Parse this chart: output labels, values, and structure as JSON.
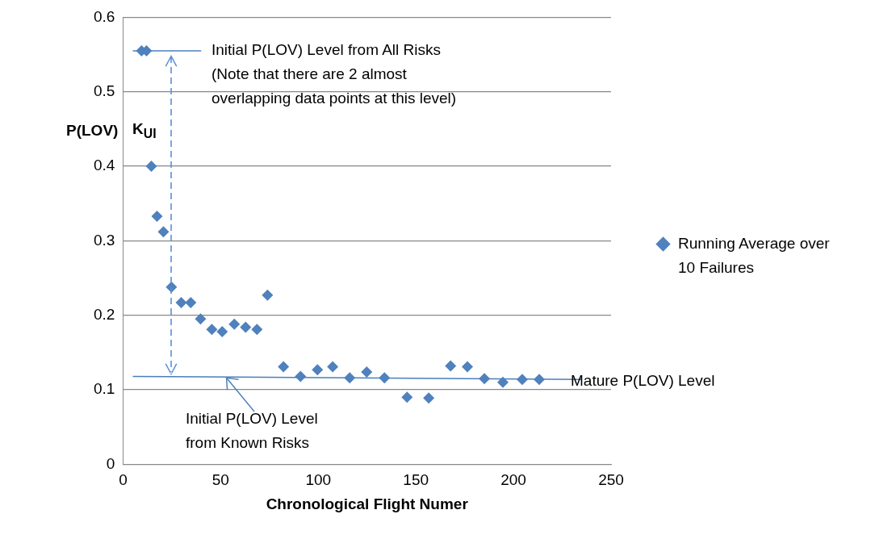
{
  "chart_data": {
    "type": "scatter",
    "xlabel": "Chronological Flight Numer",
    "ylabel": "P(LOV)",
    "xlim": [
      0,
      250
    ],
    "xticks": [
      0,
      50,
      100,
      150,
      200,
      250
    ],
    "ylim": [
      0,
      0.6
    ],
    "yticks": [
      0,
      0.1,
      0.2,
      0.3,
      0.4,
      0.5,
      0.6
    ],
    "grid": "y",
    "legend": "right",
    "marker": "diamond",
    "series": [
      {
        "name": "Running Average over 10 Failures",
        "color": "#4f81bd",
        "x": [
          9.5,
          12,
          14.5,
          17.4,
          20.7,
          24.8,
          29.8,
          34.7,
          39.7,
          45.5,
          50.8,
          57,
          62.8,
          68.6,
          74,
          82.2,
          90.9,
          99.6,
          107.4,
          116.1,
          124.8,
          133.9,
          145.5,
          156.6,
          167.8,
          176.4,
          185.1,
          194.6,
          204.5,
          213.2
        ],
        "values": [
          0.555,
          0.555,
          0.4,
          0.333,
          0.312,
          0.238,
          0.217,
          0.217,
          0.195,
          0.181,
          0.178,
          0.188,
          0.184,
          0.181,
          0.227,
          0.131,
          0.118,
          0.127,
          0.131,
          0.116,
          0.124,
          0.116,
          0.09,
          0.089,
          0.132,
          0.131,
          0.115,
          0.11,
          0.114,
          0.114
        ]
      },
      {
        "type": "line",
        "color": "#4a7ebb",
        "marker": "none",
        "line_style": "solid",
        "x": [
          5,
          40
        ],
        "values": [
          0.555,
          0.555
        ]
      },
      {
        "type": "line",
        "color": "#4a7ebb",
        "marker": "none",
        "line_style": "solid",
        "x": [
          5,
          235
        ],
        "values": [
          0.118,
          0.114
        ]
      }
    ],
    "annotations": [
      "Initial P(LOV) Level from All Risks\n(Note that there are 2 almost\noverlapping data points at this level)",
      "K$_{UI}$",
      {
        "text": "Initial P(LOV) Level\nfrom Known Risks",
        "x": 53,
        "y": 0.116
      },
      "Mature P(LOV) Level"
    ]
  }
}
